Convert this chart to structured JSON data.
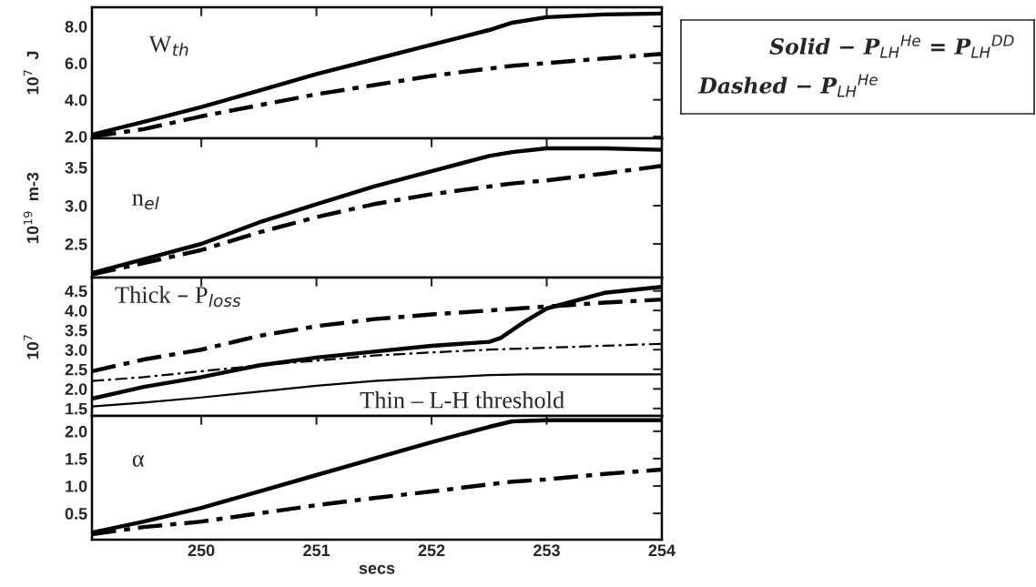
{
  "chart_data": [
    {
      "type": "line",
      "ylabel": "10$^{7}$  J",
      "annotations": [
        "W$_{th}$",
        "Solid − P$_{LH}$$^{He}$ = P$_{LH}$$^{DD}$",
        "Dashed − P$_{LH}$$^{He}$"
      ],
      "x": [
        249.05,
        249.5,
        250,
        250.5,
        251,
        251.5,
        252,
        252.5,
        252.7,
        253,
        253.5,
        254
      ],
      "xlim": [
        249.05,
        254
      ],
      "xticks": [
        250,
        251,
        252,
        253,
        254
      ],
      "ylim": [
        1.9,
        9.04
      ],
      "yticks": [
        {
          "value": 2,
          "label": "2.0"
        },
        {
          "value": 4,
          "label": "4.0"
        },
        {
          "value": 6,
          "label": "6.0"
        },
        {
          "value": 8,
          "label": "8.0"
        }
      ],
      "tick_labels": "y",
      "grid": false,
      "legend": false,
      "series": [
        {
          "color": "#000000",
          "line_style": "solid",
          "values": [
            2.1,
            2.8,
            3.6,
            4.5,
            5.4,
            6.2,
            7.0,
            7.8,
            8.2,
            8.5,
            8.65,
            8.7
          ]
        },
        {
          "color": "#000000",
          "line_style": "dashed",
          "values": [
            2.0,
            2.4,
            3.1,
            3.7,
            4.3,
            4.8,
            5.3,
            5.7,
            5.85,
            6.0,
            6.25,
            6.5
          ]
        }
      ]
    },
    {
      "type": "line",
      "ylabel": "10$^{19}$  m-3",
      "annotations": [
        "n$_{el}$"
      ],
      "x": [
        249.05,
        249.5,
        250,
        250.5,
        251,
        251.5,
        252,
        252.5,
        252.7,
        253,
        253.5,
        254
      ],
      "xlim": [
        249.05,
        254
      ],
      "xticks": [
        250,
        251,
        252,
        253,
        254
      ],
      "ylim": [
        2.06,
        3.88
      ],
      "yticks": [
        2.5,
        {
          "value": 3,
          "label": "3.0"
        },
        3.5
      ],
      "tick_labels": "y",
      "grid": false,
      "legend": false,
      "series": [
        {
          "color": "#000000",
          "line_style": "solid",
          "values": [
            2.12,
            2.3,
            2.5,
            2.78,
            3.02,
            3.25,
            3.45,
            3.65,
            3.7,
            3.75,
            3.75,
            3.73
          ]
        },
        {
          "color": "#000000",
          "line_style": "dashed",
          "values": [
            2.1,
            2.25,
            2.42,
            2.65,
            2.85,
            3.02,
            3.15,
            3.25,
            3.29,
            3.33,
            3.42,
            3.52
          ]
        }
      ]
    },
    {
      "type": "line",
      "ylabel": "10$^{7}$",
      "annotations": [
        "Thick – P$_{loss}$",
        "Thin – L-H threshold"
      ],
      "x": [
        249.05,
        249.5,
        250,
        250.5,
        251,
        251.5,
        252,
        252.5,
        252.6,
        252.8,
        253,
        253.5,
        254
      ],
      "xlim": [
        249.05,
        254
      ],
      "xticks": [
        250,
        251,
        252,
        253,
        254
      ],
      "ylim": [
        1.31,
        4.84
      ],
      "yticks": [
        1.5,
        {
          "value": 2,
          "label": "2.0"
        },
        2.5,
        {
          "value": 3,
          "label": "3.0"
        },
        3.5,
        {
          "value": 4,
          "label": "4.0"
        },
        4.5
      ],
      "tick_labels": "y",
      "grid": false,
      "legend": false,
      "series": [
        {
          "color": "#000000",
          "line_style": "solid",
          "values": [
            1.75,
            2.05,
            2.3,
            2.6,
            2.8,
            2.95,
            3.1,
            3.2,
            3.3,
            3.7,
            4.05,
            4.45,
            4.6
          ]
        },
        {
          "color": "#000000",
          "line_style": "dashed",
          "values": [
            2.45,
            2.75,
            3.0,
            3.35,
            3.6,
            3.78,
            3.9,
            4.0,
            4.02,
            4.06,
            4.1,
            4.2,
            4.28
          ]
        },
        {
          "color": "#000000",
          "line_style": "dashed",
          "values": [
            2.2,
            2.3,
            2.45,
            2.6,
            2.72,
            2.85,
            2.93,
            3.0,
            3.01,
            3.03,
            3.05,
            3.1,
            3.15
          ]
        },
        {
          "color": "#000000",
          "line_style": "solid",
          "values": [
            1.55,
            1.65,
            1.78,
            1.93,
            2.08,
            2.2,
            2.28,
            2.35,
            2.36,
            2.37,
            2.37,
            2.37,
            2.37
          ]
        }
      ]
    },
    {
      "type": "line",
      "xlabel": "secs",
      "annotations": [
        "α"
      ],
      "x": [
        249.05,
        249.5,
        250,
        250.5,
        251,
        251.5,
        252,
        252.5,
        252.7,
        253,
        253.5,
        254
      ],
      "xlim": [
        249.05,
        254
      ],
      "xticks": [
        250,
        251,
        252,
        253,
        254
      ],
      "ylim": [
        0.02,
        2.28
      ],
      "yticks": [
        0.5,
        {
          "value": 1,
          "label": "1.0"
        },
        1.5,
        {
          "value": 2,
          "label": "2.0"
        }
      ],
      "grid": false,
      "legend": false,
      "series": [
        {
          "color": "#000000",
          "line_style": "solid",
          "values": [
            0.15,
            0.35,
            0.6,
            0.9,
            1.2,
            1.5,
            1.8,
            2.08,
            2.18,
            2.2,
            2.2,
            2.2
          ]
        },
        {
          "color": "#000000",
          "line_style": "dashed",
          "values": [
            0.12,
            0.25,
            0.35,
            0.5,
            0.65,
            0.78,
            0.9,
            1.03,
            1.08,
            1.12,
            1.22,
            1.3
          ]
        }
      ]
    }
  ]
}
